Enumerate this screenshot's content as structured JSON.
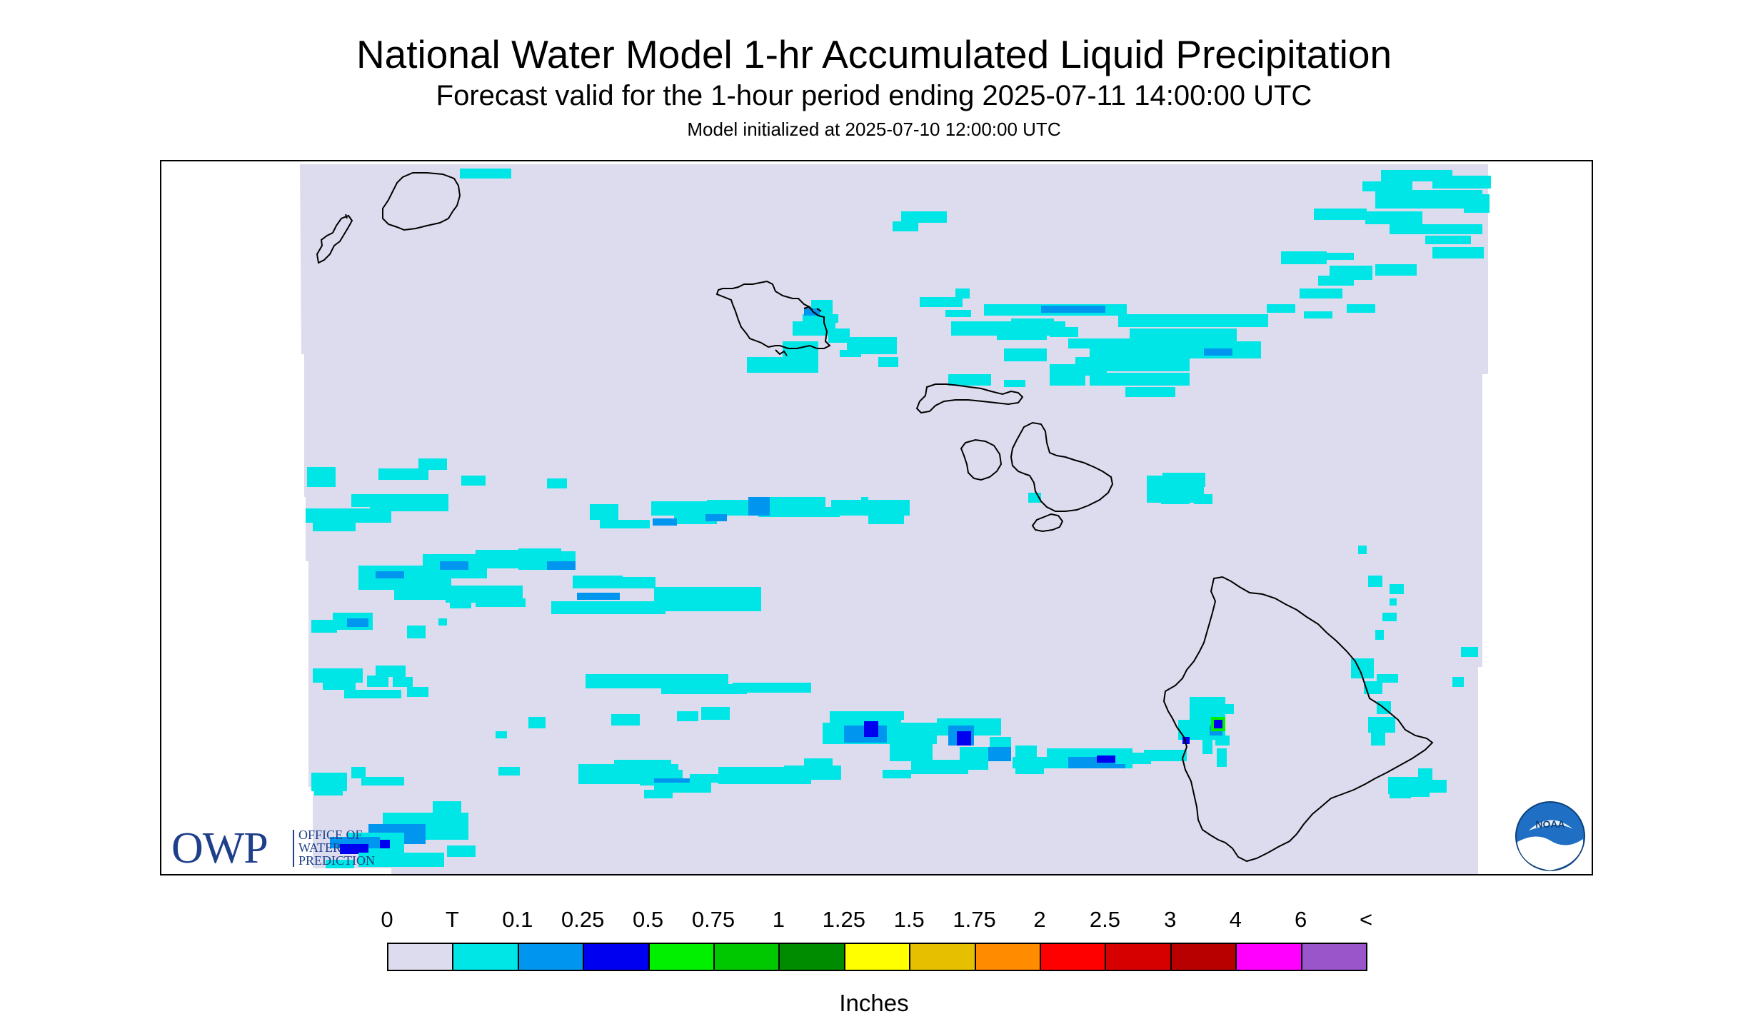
{
  "header": {
    "title": "National Water Model 1-hr Accumulated Liquid Precipitation",
    "subtitle": "Forecast valid for the 1-hour period ending 2025-07-11 14:00:00 UTC",
    "init_line": "Model initialized at 2025-07-10 12:00:00 UTC"
  },
  "map": {
    "region": "Hawaiian Islands",
    "background_color": "#dcdcee",
    "coast_color": "#000000",
    "islands": [
      "Niihau",
      "Kauai",
      "Oahu",
      "Molokai",
      "Lanai",
      "Maui",
      "Kahoolawe",
      "Hawaii"
    ]
  },
  "logos": {
    "owp": {
      "mark": "OWP",
      "lines": [
        "OFFICE OF",
        "WATER",
        "PREDICTION"
      ],
      "color": "#1e3f8a"
    },
    "noaa": {
      "text": "NOAA",
      "icon": "noaa-bird-icon"
    }
  },
  "legend": {
    "labels": [
      "0",
      "T",
      "0.1",
      "0.25",
      "0.5",
      "0.75",
      "1",
      "1.25",
      "1.5",
      "1.75",
      "2",
      "2.5",
      "3",
      "4",
      "6",
      "<"
    ],
    "colors": [
      "#dcdcee",
      "#00e6e6",
      "#0096f0",
      "#0000f0",
      "#00f000",
      "#00c800",
      "#008c00",
      "#ffff00",
      "#e6bf00",
      "#ff8c00",
      "#ff0000",
      "#d70000",
      "#b90000",
      "#ff00ff",
      "#9955c9"
    ],
    "units": "Inches"
  }
}
